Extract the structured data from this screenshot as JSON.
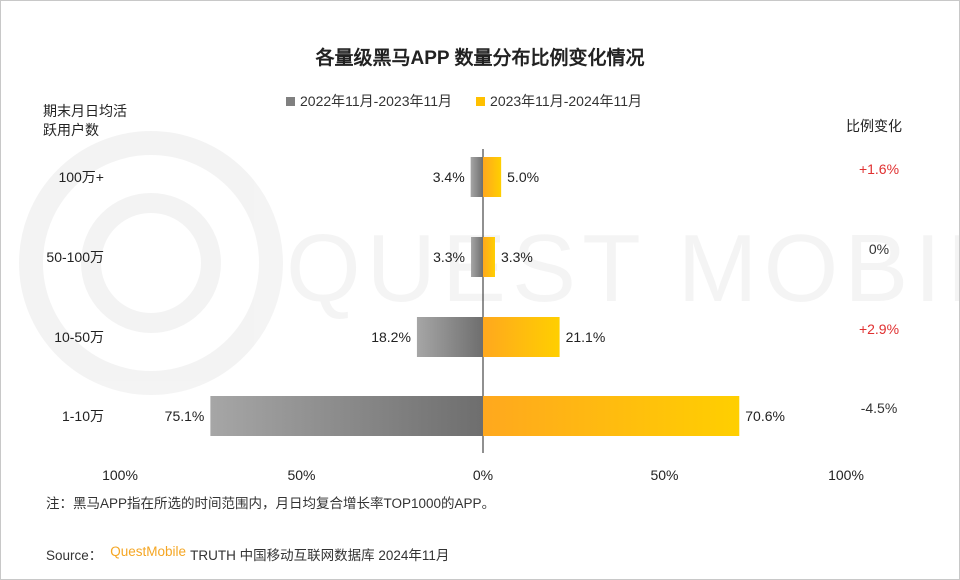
{
  "chart_data": {
    "type": "bar",
    "title": "各量级黑马APP 数量分布比例变化情况",
    "ylabel": "期末月日均活跃用户数",
    "ratio_label": "比例变化",
    "categories": [
      "100万+",
      "50-100万",
      "10-50万",
      "1-10万"
    ],
    "series": [
      {
        "name": "2022年11月-2023年11月",
        "color": "#808080",
        "values": [
          3.4,
          3.3,
          18.2,
          75.1
        ],
        "labels": [
          "3.4%",
          "3.3%",
          "18.2%",
          "75.1%"
        ]
      },
      {
        "name": "2023年11月-2024年11月",
        "color": "#ffc000",
        "values": [
          5.0,
          3.3,
          21.1,
          70.6
        ],
        "labels": [
          "5.0%",
          "3.3%",
          "21.1%",
          "70.6%"
        ]
      }
    ],
    "changes": [
      "+1.6%",
      "0%",
      "+2.9%",
      "-4.5%"
    ],
    "change_colors": [
      "#e03030",
      "#333333",
      "#e03030",
      "#333333"
    ],
    "xlim": [
      -100,
      100
    ],
    "x_ticks": [
      -100,
      -50,
      0,
      50,
      100
    ],
    "x_tick_labels": [
      "100%",
      "50%",
      "0%",
      "50%",
      "100%"
    ],
    "legend_position": "top-center"
  },
  "note": "注：黑马APP指在所选的时间范围内，月日均复合增长率TOP1000的APP。",
  "source": {
    "prefix": "Source：",
    "brand": "QuestMobile",
    "text": "TRUTH 中国移动互联网数据库 2024年11月"
  },
  "watermark": "QUEST MOBILE"
}
